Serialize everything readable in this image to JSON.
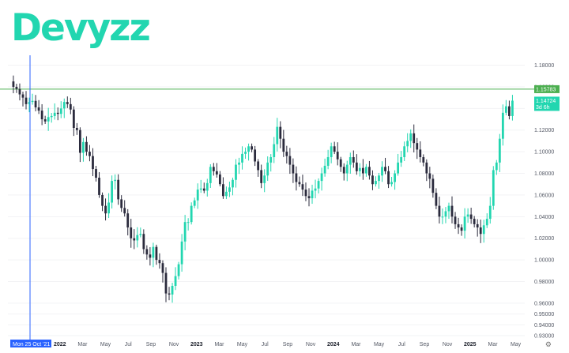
{
  "logo": "Devyzz",
  "chart_data": {
    "type": "candlestick",
    "ylim": [
      0.93,
      1.195
    ],
    "y_ticks": [
      1.18,
      1.16,
      1.14,
      1.12,
      1.1,
      1.08,
      1.06,
      1.04,
      1.02,
      1.0,
      0.98,
      0.96,
      0.95,
      0.94,
      0.93
    ],
    "y_tick_labels": [
      "1.18000",
      "1.16000",
      "1.14000",
      "1.12000",
      "1.10000",
      "1.08000",
      "1.06000",
      "1.04000",
      "1.02000",
      "1.00000",
      "0.98000",
      "0.96000",
      "0.95000",
      "0.94000",
      "0.93000"
    ],
    "x_ticks": [
      {
        "label": "2022",
        "t": 0.0,
        "major": true
      },
      {
        "label": "Mar",
        "t": 0.083,
        "major": false
      },
      {
        "label": "May",
        "t": 0.167,
        "major": false
      },
      {
        "label": "Jul",
        "t": 0.25,
        "major": false
      },
      {
        "label": "Sep",
        "t": 0.333,
        "major": false
      },
      {
        "label": "Nov",
        "t": 0.417,
        "major": false
      },
      {
        "label": "2023",
        "t": 0.5,
        "major": true
      },
      {
        "label": "Mar",
        "t": 0.583,
        "major": false
      },
      {
        "label": "May",
        "t": 0.667,
        "major": false
      },
      {
        "label": "Jul",
        "t": 0.75,
        "major": false
      },
      {
        "label": "Sep",
        "t": 0.833,
        "major": false
      },
      {
        "label": "Nov",
        "t": 0.917,
        "major": false
      },
      {
        "label": "2024",
        "t": 1.0,
        "major": true
      },
      {
        "label": "Mar",
        "t": 1.083,
        "major": false
      },
      {
        "label": "May",
        "t": 1.167,
        "major": false
      },
      {
        "label": "Jul",
        "t": 1.25,
        "major": false
      },
      {
        "label": "Sep",
        "t": 1.333,
        "major": false
      },
      {
        "label": "Nov",
        "t": 1.417,
        "major": false
      },
      {
        "label": "2025",
        "t": 1.5,
        "major": true
      },
      {
        "label": "Mar",
        "t": 1.583,
        "major": false
      },
      {
        "label": "May",
        "t": 1.667,
        "major": false
      }
    ],
    "horizontal_line": {
      "value": 1.15783,
      "label": "1.15783",
      "color": "#4caf50"
    },
    "last_price": {
      "value": 1.14724,
      "label": "1.14724",
      "countdown": "3d 6h",
      "color": "#22d6b0"
    },
    "crosshair": {
      "date_label": "Mon 25 Oct '21"
    },
    "weekly_closes": [
      1.16,
      1.158,
      1.153,
      1.15,
      1.144,
      1.146,
      1.147,
      1.141,
      1.138,
      1.13,
      1.128,
      1.132,
      1.133,
      1.136,
      1.135,
      1.14,
      1.146,
      1.144,
      1.139,
      1.122,
      1.12,
      1.099,
      1.109,
      1.1,
      1.096,
      1.084,
      1.076,
      1.06,
      1.05,
      1.043,
      1.053,
      1.073,
      1.074,
      1.056,
      1.048,
      1.043,
      1.03,
      1.02,
      1.018,
      1.023,
      1.024,
      1.01,
      1.005,
      1.002,
      1.012,
      1.0,
      0.997,
      0.988,
      0.969,
      0.968,
      0.976,
      0.985,
      0.996,
      1.017,
      1.035,
      1.035,
      1.05,
      1.055,
      1.065,
      1.066,
      1.064,
      1.071,
      1.086,
      1.082,
      1.079,
      1.07,
      1.059,
      1.063,
      1.067,
      1.074,
      1.088,
      1.09,
      1.098,
      1.1,
      1.105,
      1.102,
      1.091,
      1.083,
      1.071,
      1.078,
      1.09,
      1.095,
      1.107,
      1.123,
      1.112,
      1.1,
      1.096,
      1.088,
      1.08,
      1.072,
      1.07,
      1.065,
      1.059,
      1.057,
      1.064,
      1.066,
      1.073,
      1.08,
      1.087,
      1.095,
      1.105,
      1.1,
      1.093,
      1.086,
      1.08,
      1.088,
      1.095,
      1.09,
      1.082,
      1.085,
      1.08,
      1.086,
      1.078,
      1.07,
      1.073,
      1.078,
      1.086,
      1.082,
      1.07,
      1.072,
      1.08,
      1.09,
      1.095,
      1.105,
      1.11,
      1.117,
      1.108,
      1.102,
      1.095,
      1.09,
      1.08,
      1.075,
      1.062,
      1.05,
      1.04,
      1.04,
      1.045,
      1.05,
      1.04,
      1.033,
      1.03,
      1.027,
      1.04,
      1.042,
      1.038,
      1.033,
      1.03,
      1.024,
      1.032,
      1.038,
      1.05,
      1.083,
      1.09,
      1.112,
      1.136,
      1.142,
      1.133,
      1.1472
    ]
  }
}
